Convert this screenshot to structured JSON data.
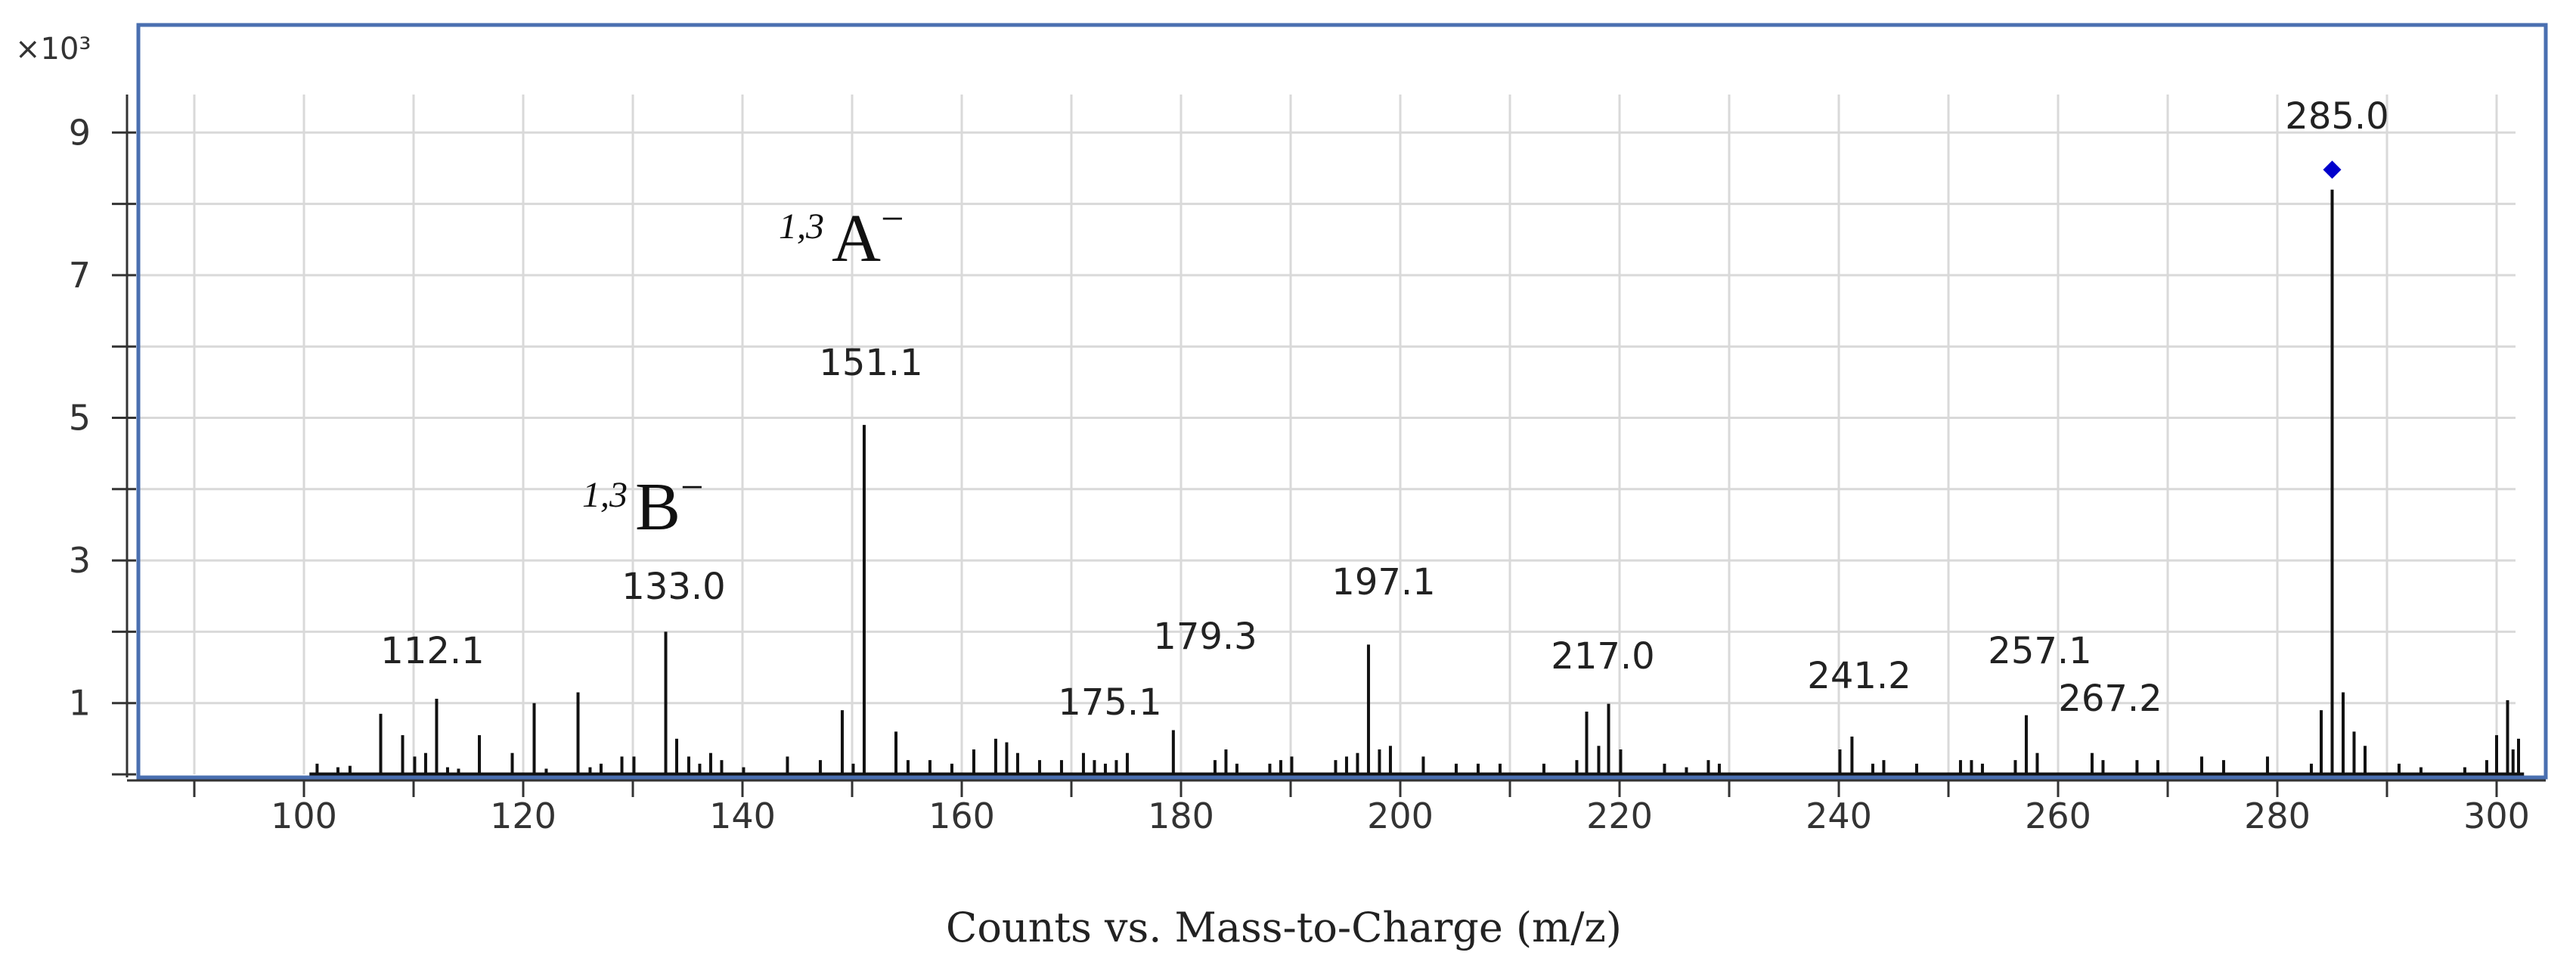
{
  "chart_data": {
    "type": "bar",
    "subtype": "mass-spectrum-stick",
    "title": "",
    "xlabel": "Counts vs. Mass-to-Charge (m/z)",
    "ylabel": "",
    "y_multiplier": "×10³",
    "xlim": [
      85.5,
      303.5
    ],
    "ylim": [
      0,
      9.6
    ],
    "x_ticks": [
      100,
      120,
      140,
      160,
      180,
      200,
      220,
      240,
      260,
      280,
      300
    ],
    "y_ticks": [
      1,
      3,
      5,
      7,
      9
    ],
    "grid": true,
    "colors": {
      "frame": "#4a6fb0",
      "grid": "#d9d9d9",
      "peaks": "#111111",
      "marker": "#0000cc"
    },
    "precursor_marker": {
      "mz": 285.0,
      "intensity": 8.48,
      "shape": "diamond"
    },
    "labeled_peaks": [
      {
        "mz": 112.1,
        "intensity": 1.06,
        "label": "112.1"
      },
      {
        "mz": 133.0,
        "intensity": 2.0,
        "label": "133.0"
      },
      {
        "mz": 151.1,
        "intensity": 4.9,
        "label": "151.1"
      },
      {
        "mz": 175.1,
        "intensity": 0.3,
        "label": "175.1"
      },
      {
        "mz": 179.3,
        "intensity": 0.62,
        "label": "179.3"
      },
      {
        "mz": 197.1,
        "intensity": 1.82,
        "label": "197.1"
      },
      {
        "mz": 217.0,
        "intensity": 0.88,
        "label": "217.0"
      },
      {
        "mz": 241.2,
        "intensity": 0.53,
        "label": "241.2"
      },
      {
        "mz": 257.1,
        "intensity": 0.83,
        "label": "257.1"
      },
      {
        "mz": 267.2,
        "intensity": 0.2,
        "label": "267.2"
      },
      {
        "mz": 285.0,
        "intensity": 8.2,
        "label": "285.0"
      }
    ],
    "annotations": [
      {
        "prefix": "1,3",
        "ion": "A",
        "charge": "−",
        "near_mz": 151.1
      },
      {
        "prefix": "1,3",
        "ion": "B",
        "charge": "−",
        "near_mz": 133.0
      }
    ],
    "other_peaks": [
      [
        101.2,
        0.15
      ],
      [
        103.1,
        0.1
      ],
      [
        104.2,
        0.12
      ],
      [
        107.0,
        0.85
      ],
      [
        109.0,
        0.55
      ],
      [
        110.1,
        0.25
      ],
      [
        111.1,
        0.3
      ],
      [
        113.1,
        0.1
      ],
      [
        114.1,
        0.08
      ],
      [
        116.0,
        0.55
      ],
      [
        119.0,
        0.3
      ],
      [
        121.0,
        1.0
      ],
      [
        122.1,
        0.08
      ],
      [
        125.0,
        1.15
      ],
      [
        126.1,
        0.1
      ],
      [
        127.1,
        0.15
      ],
      [
        129.0,
        0.25
      ],
      [
        130.1,
        0.25
      ],
      [
        134.0,
        0.5
      ],
      [
        135.1,
        0.25
      ],
      [
        136.1,
        0.15
      ],
      [
        137.1,
        0.3
      ],
      [
        138.1,
        0.2
      ],
      [
        140.1,
        0.1
      ],
      [
        144.1,
        0.25
      ],
      [
        147.1,
        0.2
      ],
      [
        149.1,
        0.9
      ],
      [
        150.1,
        0.15
      ],
      [
        154.0,
        0.6
      ],
      [
        155.1,
        0.2
      ],
      [
        157.1,
        0.2
      ],
      [
        159.1,
        0.15
      ],
      [
        161.1,
        0.35
      ],
      [
        163.1,
        0.5
      ],
      [
        164.1,
        0.45
      ],
      [
        165.1,
        0.3
      ],
      [
        167.1,
        0.2
      ],
      [
        169.1,
        0.2
      ],
      [
        171.1,
        0.3
      ],
      [
        172.1,
        0.2
      ],
      [
        173.1,
        0.15
      ],
      [
        174.1,
        0.2
      ],
      [
        183.1,
        0.2
      ],
      [
        184.1,
        0.35
      ],
      [
        185.1,
        0.15
      ],
      [
        188.1,
        0.15
      ],
      [
        189.1,
        0.2
      ],
      [
        190.1,
        0.25
      ],
      [
        194.1,
        0.2
      ],
      [
        195.1,
        0.25
      ],
      [
        196.1,
        0.3
      ],
      [
        198.1,
        0.35
      ],
      [
        199.1,
        0.4
      ],
      [
        202.1,
        0.25
      ],
      [
        205.1,
        0.15
      ],
      [
        207.1,
        0.15
      ],
      [
        209.1,
        0.15
      ],
      [
        213.1,
        0.15
      ],
      [
        216.1,
        0.2
      ],
      [
        218.1,
        0.4
      ],
      [
        219.0,
        0.99
      ],
      [
        220.1,
        0.35
      ],
      [
        224.1,
        0.15
      ],
      [
        226.1,
        0.1
      ],
      [
        228.1,
        0.2
      ],
      [
        229.1,
        0.15
      ],
      [
        240.1,
        0.35
      ],
      [
        243.1,
        0.15
      ],
      [
        244.1,
        0.2
      ],
      [
        247.1,
        0.15
      ],
      [
        251.1,
        0.2
      ],
      [
        252.1,
        0.2
      ],
      [
        253.1,
        0.15
      ],
      [
        256.1,
        0.2
      ],
      [
        258.1,
        0.3
      ],
      [
        263.1,
        0.3
      ],
      [
        264.1,
        0.2
      ],
      [
        269.1,
        0.2
      ],
      [
        273.1,
        0.25
      ],
      [
        275.1,
        0.2
      ],
      [
        279.1,
        0.25
      ],
      [
        283.1,
        0.15
      ],
      [
        284.0,
        0.9
      ],
      [
        286.0,
        1.15
      ],
      [
        287.0,
        0.6
      ],
      [
        288.0,
        0.4
      ],
      [
        291.1,
        0.15
      ],
      [
        293.1,
        0.1
      ],
      [
        297.1,
        0.1
      ],
      [
        299.1,
        0.2
      ],
      [
        300.0,
        0.55
      ],
      [
        301.0,
        1.04
      ],
      [
        301.5,
        0.35
      ],
      [
        302.0,
        0.5
      ]
    ]
  }
}
